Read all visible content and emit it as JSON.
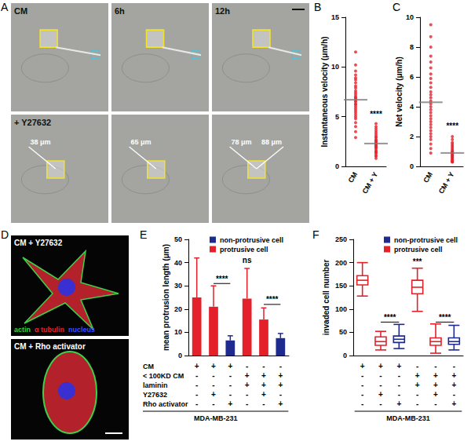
{
  "panel_A": {
    "panel": "A",
    "frames": [
      {
        "label": "CM"
      },
      {
        "label": "6h"
      },
      {
        "label": "12h"
      },
      {
        "label": "+ Y27632",
        "measurements": [
          "38 μm"
        ]
      },
      {
        "measurements": [
          "65 μm"
        ]
      },
      {
        "measurements": [
          "78 μm",
          "88 μm"
        ]
      }
    ]
  },
  "panel_D": {
    "panel": "D",
    "frames": [
      {
        "label": "CM + Y27632",
        "channels": [
          {
            "text": "actin",
            "color": "#33d43d"
          },
          {
            "text": "α tubulin",
            "color": "#e3242b"
          },
          {
            "text": "nucleus",
            "color": "#3a4bff"
          }
        ]
      },
      {
        "label": "CM + Rho activator"
      }
    ]
  },
  "chart_data": [
    {
      "panel": "B",
      "type": "scatter",
      "y_label": "Instantaneous velocity (μm/h)",
      "categories": [
        "CM",
        "CM + Y"
      ],
      "values": [
        [
          11.5,
          10.2,
          9.6,
          9.2,
          8.9,
          8.7,
          8.4,
          8.1,
          7.9,
          7.6,
          7.4,
          7.2,
          7.0,
          6.9,
          6.8,
          6.6,
          6.5,
          6.3,
          6.2,
          6.0,
          5.8,
          5.6,
          5.4,
          5.2,
          5.0,
          4.8,
          4.4,
          4.0,
          3.5,
          2.9
        ],
        [
          4.3,
          4.0,
          3.8,
          3.6,
          3.4,
          3.2,
          3.0,
          2.9,
          2.7,
          2.6,
          2.5,
          2.4,
          2.3,
          2.2,
          2.1,
          2.0,
          1.9,
          1.8,
          1.6,
          1.5,
          1.4,
          1.3,
          1.1,
          1.0,
          0.8
        ]
      ],
      "means": [
        6.7,
        2.3
      ],
      "color": "#e8202a",
      "ylim": [
        0,
        15
      ],
      "yticks": [
        0,
        5,
        10,
        15
      ],
      "grid": false,
      "annotations": [
        {
          "text": "****",
          "at": 1,
          "y": 4.8
        }
      ]
    },
    {
      "panel": "C",
      "type": "scatter",
      "y_label": "Net velocity (μm/h)",
      "categories": [
        "CM",
        "CM + Y"
      ],
      "values": [
        [
          9.5,
          8.7,
          8.0,
          7.4,
          7.0,
          6.6,
          6.2,
          5.9,
          5.6,
          5.3,
          5.0,
          4.8,
          4.6,
          4.4,
          4.2,
          4.0,
          3.8,
          3.6,
          3.4,
          3.2,
          3.0,
          2.8,
          2.6,
          2.4,
          2.2,
          2.0,
          1.8,
          1.5,
          1.2,
          0.9
        ],
        [
          2.0,
          1.8,
          1.6,
          1.5,
          1.4,
          1.3,
          1.2,
          1.1,
          1.0,
          1.0,
          0.9,
          0.9,
          0.8,
          0.8,
          0.7,
          0.7,
          0.6,
          0.6,
          0.5,
          0.5,
          0.4,
          0.4,
          0.3,
          0.3,
          0.3
        ]
      ],
      "means": [
        4.3,
        0.9
      ],
      "color": "#e8202a",
      "ylim": [
        0,
        10
      ],
      "yticks": [
        0,
        2,
        4,
        6,
        8,
        10
      ],
      "grid": false,
      "annotations": [
        {
          "text": "****",
          "at": 1,
          "y": 2.4
        }
      ]
    },
    {
      "panel": "E",
      "type": "bar",
      "y_label": "mean protrusion length (μm)",
      "ylim": [
        0,
        50
      ],
      "yticks": [
        0,
        10,
        20,
        30,
        40,
        50
      ],
      "grid": false,
      "legend": "upper right",
      "series": [
        {
          "name": "non-protrusive cell",
          "color": "#1f2a8f",
          "values": [
            null,
            null,
            6.5,
            null,
            null,
            7.5
          ],
          "error_upper": [
            null,
            null,
            2,
            null,
            null,
            2
          ]
        },
        {
          "name": "protrusive cell",
          "color": "#e4202a",
          "values": [
            25,
            21,
            null,
            24.5,
            15.5,
            null
          ],
          "error_upper": [
            17,
            9,
            null,
            13,
            5,
            null
          ]
        }
      ],
      "annotations": [
        {
          "text": "****",
          "between": [
            1,
            2
          ],
          "y": 31
        },
        {
          "text": "ns",
          "at": 3,
          "y": 39
        },
        {
          "text": "****",
          "between": [
            4,
            5
          ],
          "y": 22
        }
      ],
      "conditions": {
        "rows": [
          "CM",
          "< 100KD CM",
          "laminin",
          "Y27632",
          "Rho activator"
        ],
        "signs": [
          [
            "+",
            "+",
            "+",
            "-",
            "-",
            "-"
          ],
          [
            "-",
            "-",
            "-",
            "+",
            "+",
            "+"
          ],
          [
            "-",
            "-",
            "-",
            "+",
            "+",
            "+"
          ],
          [
            "-",
            "+",
            "-",
            "-",
            "+",
            "-"
          ],
          [
            "-",
            "-",
            "+",
            "-",
            "-",
            "+"
          ]
        ]
      },
      "footer": "MDA-MB-231"
    },
    {
      "panel": "F",
      "type": "boxplot",
      "y_label": "invaded cell number",
      "ylim": [
        0,
        250
      ],
      "yticks": [
        0,
        50,
        100,
        150,
        200,
        250
      ],
      "grid": false,
      "legend": "upper right",
      "series": [
        {
          "name": "non-protrusive cell",
          "color": "#1f2a8f",
          "values": [
            null,
            null,
            [
              15,
              28,
              35,
              42,
              67
            ],
            null,
            null,
            [
              12,
              24,
              30,
              38,
              65
            ]
          ]
        },
        {
          "name": "protrusive cell",
          "color": "#e4202a",
          "values": [
            [
              128,
              152,
              162,
              172,
              200
            ],
            [
              12,
              22,
              30,
              40,
              52
            ],
            null,
            [
              95,
              133,
              147,
              162,
              188
            ],
            [
              5,
              22,
              30,
              38,
              68
            ],
            null
          ]
        }
      ],
      "annotations": [
        {
          "text": "****",
          "between": [
            1,
            2
          ],
          "y": 72
        },
        {
          "text": "***",
          "at": 3,
          "y": 192
        },
        {
          "text": "****",
          "between": [
            4,
            5
          ],
          "y": 72
        }
      ],
      "conditions": {
        "signs": [
          [
            "+",
            "+",
            "+",
            "-",
            "-",
            "-"
          ],
          [
            "-",
            "-",
            "-",
            "+",
            "+",
            "+"
          ],
          [
            "-",
            "-",
            "-",
            "+",
            "+",
            "+"
          ],
          [
            "-",
            "+",
            "-",
            "-",
            "+",
            "-"
          ],
          [
            "-",
            "-",
            "+",
            "-",
            "-",
            "+"
          ]
        ]
      },
      "footer": "MDA-MB-231"
    }
  ]
}
